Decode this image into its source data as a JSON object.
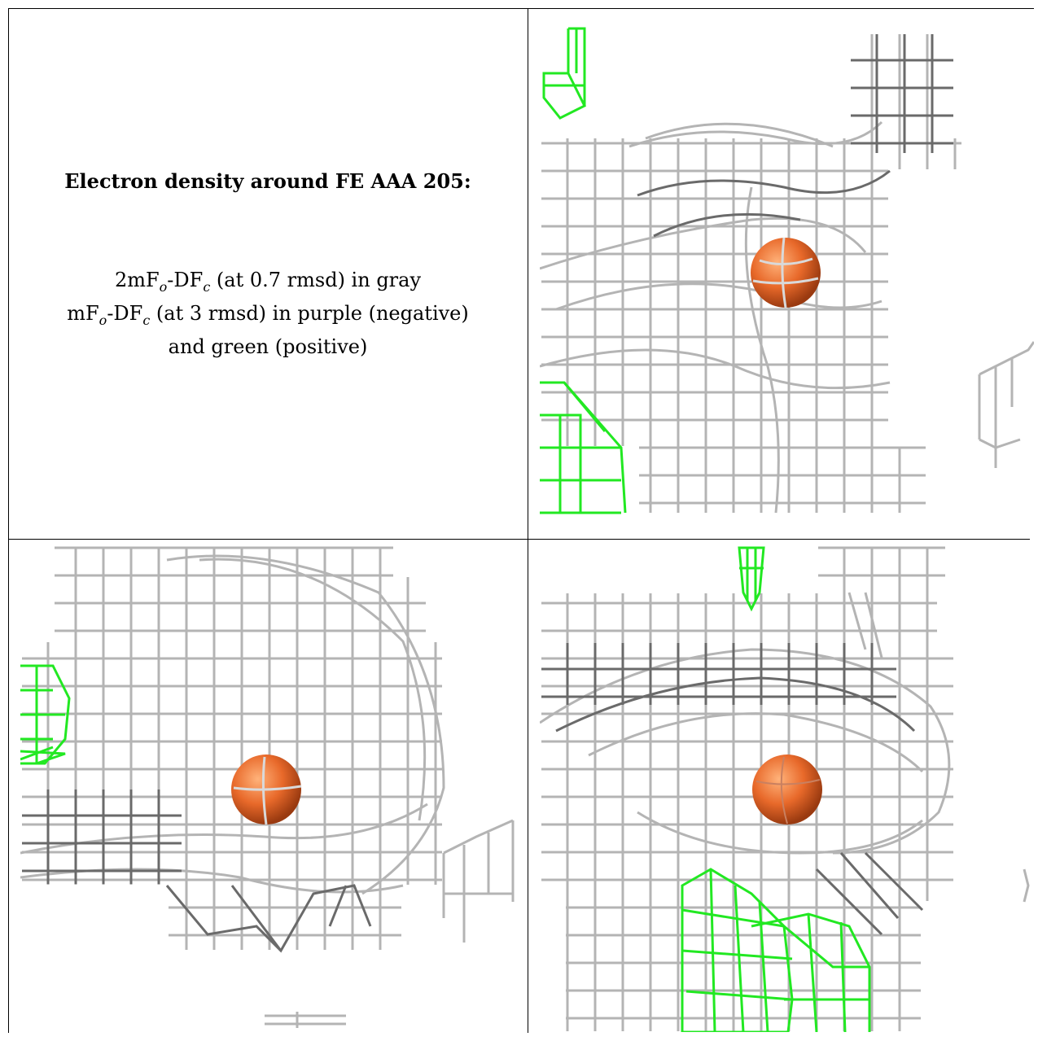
{
  "caption": {
    "title": "Electron density around FE AAA 205:",
    "line1": "2mFo-DFc (at 0.7 rmsd) in gray",
    "line2": "mFo-DFc (at 3 rmsd) in purple (negative)",
    "line3": "and green (positive)"
  },
  "colors": {
    "map_2fofc": "#b4b4b4",
    "map_2fofc_dark": "#5a5a5a",
    "map_fofc_positive": "#22e822",
    "atom_fe": "#e8692a"
  }
}
